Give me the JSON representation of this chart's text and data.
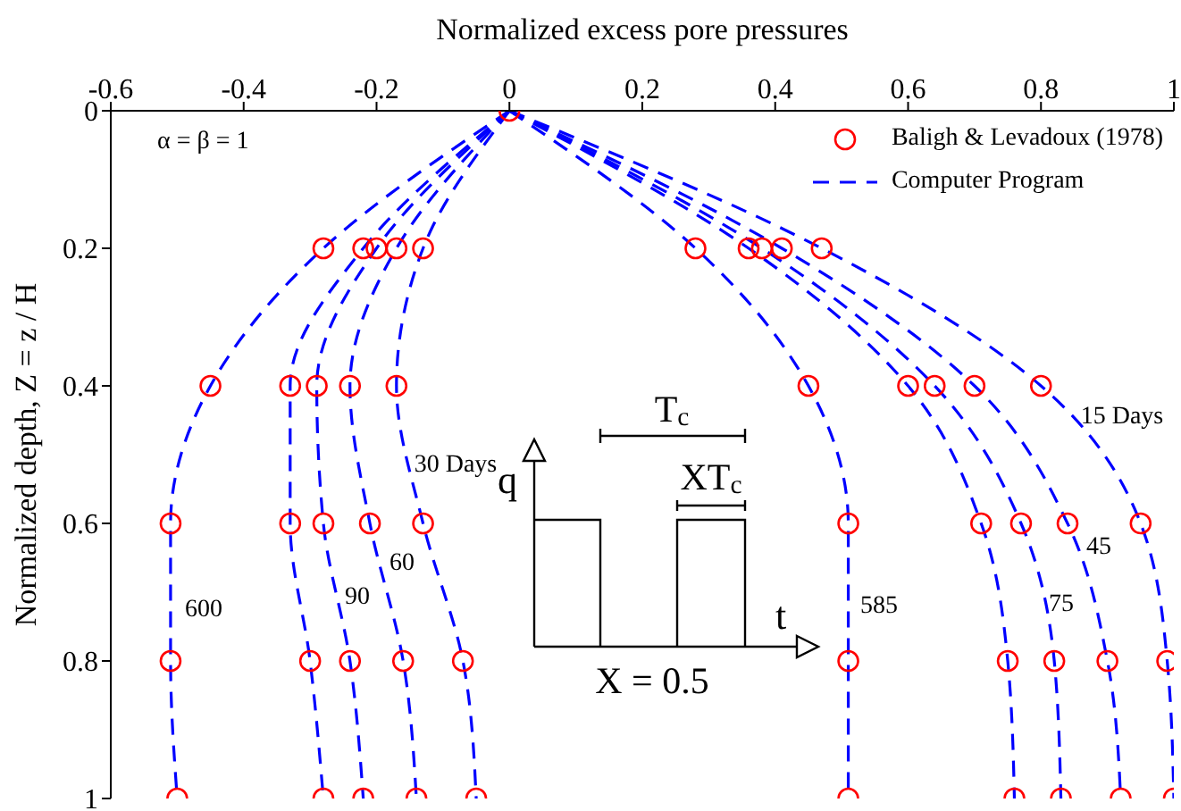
{
  "chart_data": {
    "type": "line",
    "xlabel": "Normalized excess pore pressures",
    "ylabel": "Normalized depth, Z = z / H",
    "xlim": [
      -0.6,
      1
    ],
    "xticks": [
      -0.6,
      -0.4,
      -0.2,
      0,
      0.2,
      0.4,
      0.6,
      0.8,
      1
    ],
    "ylim": [
      1,
      0
    ],
    "yticks": [
      0,
      0.2,
      0.4,
      0.6,
      0.8,
      1
    ],
    "legend": "top right",
    "series": [
      {
        "type": "scatter",
        "name": "Baligh & Levadoux (1978)",
        "color": "#ff0000",
        "marker": "circle",
        "x": [
          0,
          -0.28,
          -0.45,
          -0.51,
          -0.51,
          -0.5,
          -0.22,
          -0.33,
          -0.33,
          -0.3,
          -0.28,
          -0.2,
          -0.29,
          -0.28,
          -0.24,
          -0.22,
          -0.17,
          -0.24,
          -0.21,
          -0.16,
          -0.14,
          -0.13,
          -0.17,
          -0.13,
          -0.07,
          -0.05,
          0.28,
          0.45,
          0.51,
          0.51,
          0.51,
          0.36,
          0.6,
          0.71,
          0.75,
          0.76,
          0.38,
          0.64,
          0.77,
          0.82,
          0.83,
          0.41,
          0.7,
          0.84,
          0.9,
          0.92,
          0.47,
          0.8,
          0.95,
          0.99,
          1
        ],
        "values": [
          0,
          0.2,
          0.4,
          0.6,
          0.8,
          1,
          0.2,
          0.4,
          0.6,
          0.8,
          1,
          0.2,
          0.4,
          0.6,
          0.8,
          1,
          0.2,
          0.4,
          0.6,
          0.8,
          1,
          0.2,
          0.4,
          0.6,
          0.8,
          1,
          0.2,
          0.4,
          0.6,
          0.8,
          1,
          0.2,
          0.4,
          0.6,
          0.8,
          1,
          0.2,
          0.4,
          0.6,
          0.8,
          1,
          0.2,
          0.4,
          0.6,
          0.8,
          1,
          0.2,
          0.4,
          0.6,
          0.8,
          1
        ]
      },
      {
        "name": "Computer Program",
        "color": "#0000ff",
        "line_style": "dashed",
        "marker": "none",
        "x": [
          0,
          -0.28,
          -0.45,
          -0.51,
          -0.51,
          -0.5
        ],
        "values": [
          0,
          0.2,
          0.4,
          0.6,
          0.8,
          1
        ]
      },
      {
        "color": "#0000ff",
        "line_style": "dashed",
        "marker": "none",
        "x": [
          0,
          -0.22,
          -0.33,
          -0.33,
          -0.3,
          -0.28
        ],
        "values": [
          0,
          0.2,
          0.4,
          0.6,
          0.8,
          1
        ]
      },
      {
        "color": "#0000ff",
        "line_style": "dashed",
        "marker": "none",
        "x": [
          0,
          -0.2,
          -0.29,
          -0.28,
          -0.24,
          -0.22
        ],
        "values": [
          0,
          0.2,
          0.4,
          0.6,
          0.8,
          1
        ]
      },
      {
        "color": "#0000ff",
        "line_style": "dashed",
        "marker": "none",
        "x": [
          0,
          -0.17,
          -0.24,
          -0.21,
          -0.16,
          -0.14
        ],
        "values": [
          0,
          0.2,
          0.4,
          0.6,
          0.8,
          1
        ]
      },
      {
        "color": "#0000ff",
        "line_style": "dashed",
        "marker": "none",
        "x": [
          0,
          -0.13,
          -0.17,
          -0.13,
          -0.07,
          -0.05
        ],
        "values": [
          0,
          0.2,
          0.4,
          0.6,
          0.8,
          1
        ]
      },
      {
        "color": "#0000ff",
        "line_style": "dashed",
        "marker": "none",
        "x": [
          0,
          0.28,
          0.45,
          0.51,
          0.51,
          0.51
        ],
        "values": [
          0,
          0.2,
          0.4,
          0.6,
          0.8,
          1
        ]
      },
      {
        "color": "#0000ff",
        "line_style": "dashed",
        "marker": "none",
        "x": [
          0,
          0.36,
          0.6,
          0.71,
          0.75,
          0.76
        ],
        "values": [
          0,
          0.2,
          0.4,
          0.6,
          0.8,
          1
        ]
      },
      {
        "color": "#0000ff",
        "line_style": "dashed",
        "marker": "none",
        "x": [
          0,
          0.38,
          0.64,
          0.77,
          0.82,
          0.83
        ],
        "values": [
          0,
          0.2,
          0.4,
          0.6,
          0.8,
          1
        ]
      },
      {
        "color": "#0000ff",
        "line_style": "dashed",
        "marker": "none",
        "x": [
          0,
          0.41,
          0.7,
          0.84,
          0.9,
          0.92
        ],
        "values": [
          0,
          0.2,
          0.4,
          0.6,
          0.8,
          1
        ]
      },
      {
        "color": "#0000ff",
        "line_style": "dashed",
        "marker": "none",
        "x": [
          0,
          0.47,
          0.8,
          0.95,
          0.99,
          1
        ],
        "values": [
          0,
          0.2,
          0.4,
          0.6,
          0.8,
          1
        ]
      }
    ],
    "annotations": [
      "α = β = 1",
      "T$_{c}$",
      "XT$_{c}$",
      "q",
      "t",
      "X = 0.5",
      "600",
      "90",
      "60",
      "30 Days",
      "585",
      "75",
      "45",
      "15 Days"
    ]
  }
}
